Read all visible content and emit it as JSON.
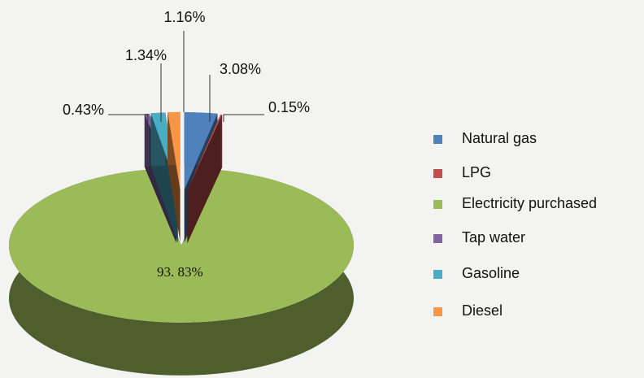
{
  "chart_data": {
    "type": "pie3d",
    "categories": [
      "Natural gas",
      "LPG",
      "Electricity purchased",
      "Tap water",
      "Gasoline",
      "Diesel"
    ],
    "values": [
      3.08,
      0.15,
      93.83,
      0.43,
      1.34,
      1.16
    ],
    "value_labels": [
      "3.08%",
      "0.15%",
      "93. 83%",
      "0.43%",
      "1.34%",
      "1.16%"
    ],
    "colors": [
      "#4f81bd",
      "#c0504d",
      "#9bbb59",
      "#8064a2",
      "#4bacc6",
      "#f79646"
    ],
    "legend": "right"
  }
}
